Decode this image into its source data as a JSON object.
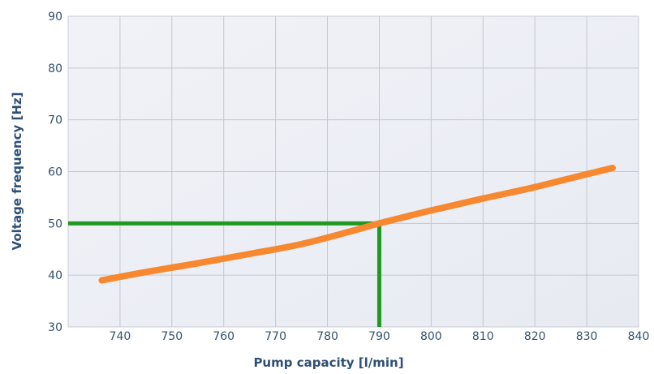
{
  "chart_data": {
    "type": "line",
    "title": "",
    "xlabel": "Pump capacity [l/min]",
    "ylabel": "Voltage frequency [Hz]",
    "xlim": [
      730,
      840
    ],
    "ylim": [
      30,
      90
    ],
    "x_ticks": [
      740,
      750,
      760,
      770,
      780,
      790,
      800,
      810,
      820,
      830,
      840
    ],
    "y_ticks": [
      30,
      40,
      50,
      60,
      70,
      80,
      90
    ],
    "grid": true,
    "legend": "none",
    "series": [
      {
        "color": "#f7882f",
        "x": [
          736.5,
          745,
          755,
          765,
          775,
          785,
          790,
          800,
          810,
          820,
          830,
          835
        ],
        "y": [
          39,
          40.6,
          42.3,
          44.1,
          46.0,
          48.6,
          50,
          52.5,
          54.8,
          57.0,
          59.5,
          60.7
        ]
      }
    ],
    "reference_lines": {
      "color": "#1f9a1f",
      "horizontal": {
        "y": 50,
        "x_from": 730,
        "x_to": 790
      },
      "vertical": {
        "x": 790,
        "y_from": 30,
        "y_to": 50
      }
    }
  }
}
